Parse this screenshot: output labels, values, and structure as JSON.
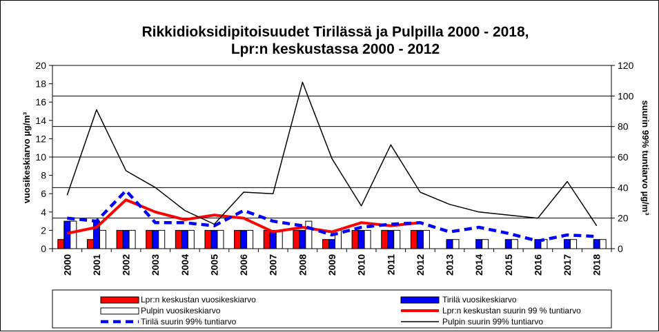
{
  "chart_data": {
    "type": "bar",
    "title_lines": [
      "Rikkidioksidipitoisuudet Tirilässä ja Pulpilla 2000 - 2018,",
      "Lpr:n keskustassa 2000 - 2012"
    ],
    "ylabel_left": "vuosikeskiarvo  µg/m³",
    "ylabel_right": "suurin 99% tuntiarvo µg/m³",
    "ylim_left": [
      0,
      20
    ],
    "ylim_right": [
      0,
      120
    ],
    "yticks_left": [
      "0",
      "2",
      "4",
      "6",
      "8",
      "10",
      "12",
      "14",
      "16",
      "18",
      "20"
    ],
    "yticks_right": [
      "0",
      "20",
      "40",
      "60",
      "80",
      "100",
      "120"
    ],
    "grid": true,
    "legend_position": "bottom",
    "categories": [
      "2000",
      "2001",
      "2002",
      "2003",
      "2004",
      "2005",
      "2006",
      "2007",
      "2008",
      "2009",
      "2010",
      "2011",
      "2012",
      "2013",
      "2014",
      "2015",
      "2016",
      "2017",
      "2018"
    ],
    "series": [
      {
        "name": "Lpr:n keskustan vuosikeskiarvo",
        "type": "bar",
        "axis": "left",
        "color": "#ff0000",
        "values": [
          1,
          1,
          2,
          2,
          2,
          2,
          2,
          2,
          2,
          1,
          2,
          2,
          2,
          null,
          null,
          null,
          null,
          null,
          null
        ]
      },
      {
        "name": "Tirilä vuosikeskiarvo",
        "type": "bar",
        "axis": "left",
        "color": "#0000ff",
        "values": [
          3,
          3,
          2,
          2,
          2,
          2,
          2,
          2,
          2,
          1,
          2,
          2,
          2,
          1,
          1,
          1,
          1,
          1,
          1
        ]
      },
      {
        "name": "Pulpin vuosikeskiarvo",
        "type": "bar",
        "axis": "left",
        "color": "#ffffff",
        "values": [
          3,
          2,
          2,
          2,
          2,
          2,
          2,
          2,
          3,
          2,
          2,
          2,
          2,
          1,
          1,
          1,
          1,
          1,
          1
        ]
      },
      {
        "name": "Lpr:n keskustan suurin 99 % tuntiarvo",
        "type": "line",
        "axis": "right",
        "color": "#ff0000",
        "values": [
          10,
          14,
          32,
          24,
          19,
          22,
          20,
          11,
          14,
          11,
          17,
          15,
          17,
          null,
          null,
          null,
          null,
          null,
          null
        ]
      },
      {
        "name": "Tirilä suurin 99% tuntiarvo",
        "type": "line",
        "axis": "right",
        "color": "#0000ff",
        "dashed": true,
        "values": [
          20,
          18,
          38,
          17,
          17,
          15,
          25,
          18,
          15,
          9,
          14,
          16,
          17,
          11,
          14,
          10,
          5,
          9,
          8
        ]
      },
      {
        "name": "Pulpin suurin 99% tuntiarvo",
        "type": "line",
        "axis": "right",
        "color": "#000000",
        "values": [
          35,
          91,
          51,
          40,
          25,
          16,
          37,
          36,
          109,
          59,
          28,
          68,
          37,
          29,
          24,
          22,
          20,
          44,
          15
        ]
      }
    ],
    "legend_order": [
      0,
      1,
      2,
      3,
      4,
      5
    ]
  }
}
